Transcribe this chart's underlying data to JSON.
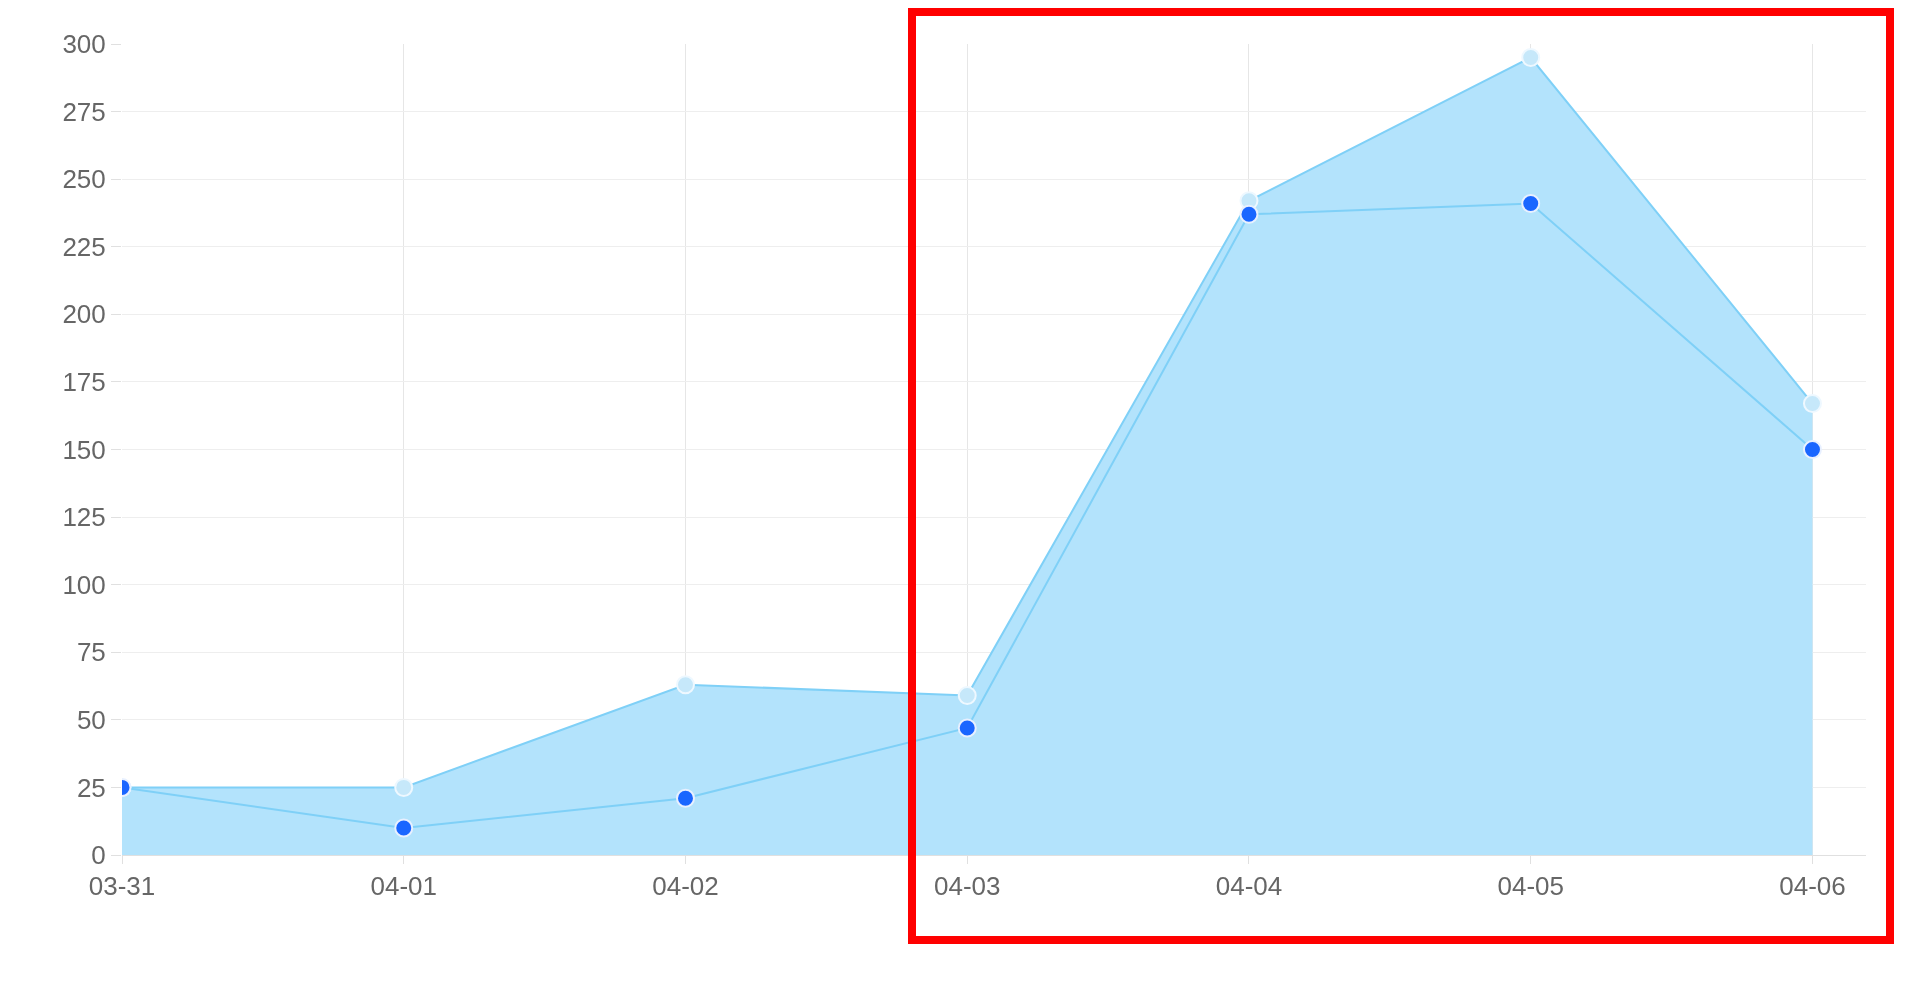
{
  "chart_data": {
    "type": "area",
    "categories": [
      "03-31",
      "04-01",
      "04-02",
      "04-03",
      "04-04",
      "04-05",
      "04-06"
    ],
    "series": [
      {
        "color": "#b3e3fc",
        "values": [
          25,
          25,
          63,
          59,
          242,
          295,
          167
        ]
      },
      {
        "type": "line",
        "color": "#1a66ff",
        "values": [
          25,
          10,
          21,
          47,
          237,
          241,
          150
        ]
      }
    ],
    "ylim": [
      0,
      300
    ],
    "yticks": [
      0,
      25,
      50,
      75,
      100,
      125,
      150,
      175,
      200,
      225,
      250,
      275,
      300
    ],
    "grid": true,
    "legend": false,
    "marker": "circle"
  }
}
